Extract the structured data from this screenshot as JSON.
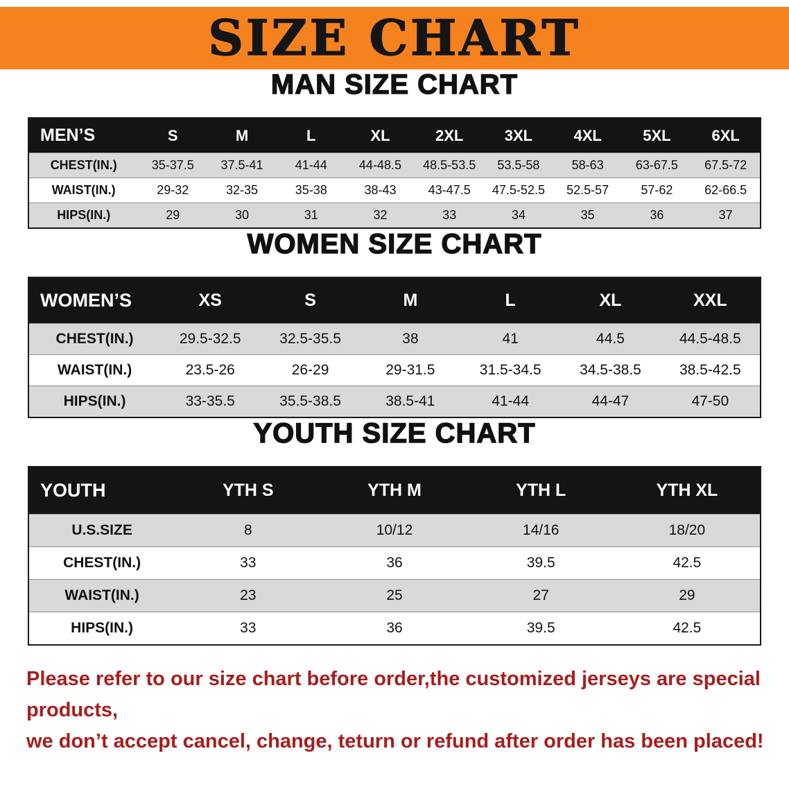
{
  "banner": {
    "title": "SIZE CHART"
  },
  "colors": {
    "banner_bg": "#f5821f",
    "table_header_bg": "#141414",
    "table_header_text": "#ffffff",
    "row_alt_bg": "#d9d9d9",
    "note_text": "#a81d1d"
  },
  "sections": [
    {
      "heading": "MAN SIZE CHART",
      "table": {
        "header": [
          "MEN’S",
          "S",
          "M",
          "L",
          "XL",
          "2XL",
          "3XL",
          "4XL",
          "5XL",
          "6XL"
        ],
        "rows": [
          [
            "CHEST(IN.)",
            "35-37.5",
            "37.5-41",
            "41-44",
            "44-48.5",
            "48.5-53.5",
            "53.5-58",
            "58-63",
            "63-67.5",
            "67.5-72"
          ],
          [
            "WAIST(IN.)",
            "29-32",
            "32-35",
            "35-38",
            "38-43",
            "43-47.5",
            "47.5-52.5",
            "52.5-57",
            "57-62",
            "62-66.5"
          ],
          [
            "HIPS(IN.)",
            "29",
            "30",
            "31",
            "32",
            "33",
            "34",
            "35",
            "36",
            "37"
          ]
        ]
      }
    },
    {
      "heading": "WOMEN SIZE CHART",
      "table": {
        "header": [
          "WOMEN’S",
          "XS",
          "S",
          "M",
          "L",
          "XL",
          "XXL"
        ],
        "rows": [
          [
            "CHEST(IN.)",
            "29.5-32.5",
            "32.5-35.5",
            "38",
            "41",
            "44.5",
            "44.5-48.5"
          ],
          [
            "WAIST(IN.)",
            "23.5-26",
            "26-29",
            "29-31.5",
            "31.5-34.5",
            "34.5-38.5",
            "38.5-42.5"
          ],
          [
            "HIPS(IN.)",
            "33-35.5",
            "35.5-38.5",
            "38.5-41",
            "41-44",
            "44-47",
            "47-50"
          ]
        ]
      }
    },
    {
      "heading": "YOUTH SIZE CHART",
      "table": {
        "header": [
          "YOUTH",
          "YTH S",
          "YTH M",
          "YTH L",
          "YTH XL"
        ],
        "rows": [
          [
            "U.S.SIZE",
            "8",
            "10/12",
            "14/16",
            "18/20"
          ],
          [
            "CHEST(IN.)",
            "33",
            "36",
            "39.5",
            "42.5"
          ],
          [
            "WAIST(IN.)",
            "23",
            "25",
            "27",
            "29"
          ],
          [
            "HIPS(IN.)",
            "33",
            "36",
            "39.5",
            "42.5"
          ]
        ]
      }
    }
  ],
  "note": {
    "line1": "Please refer to our size chart before order,the customized jerseys are special products,",
    "line2": "we don’t accept cancel, change, teturn or refund after order has been placed!"
  }
}
